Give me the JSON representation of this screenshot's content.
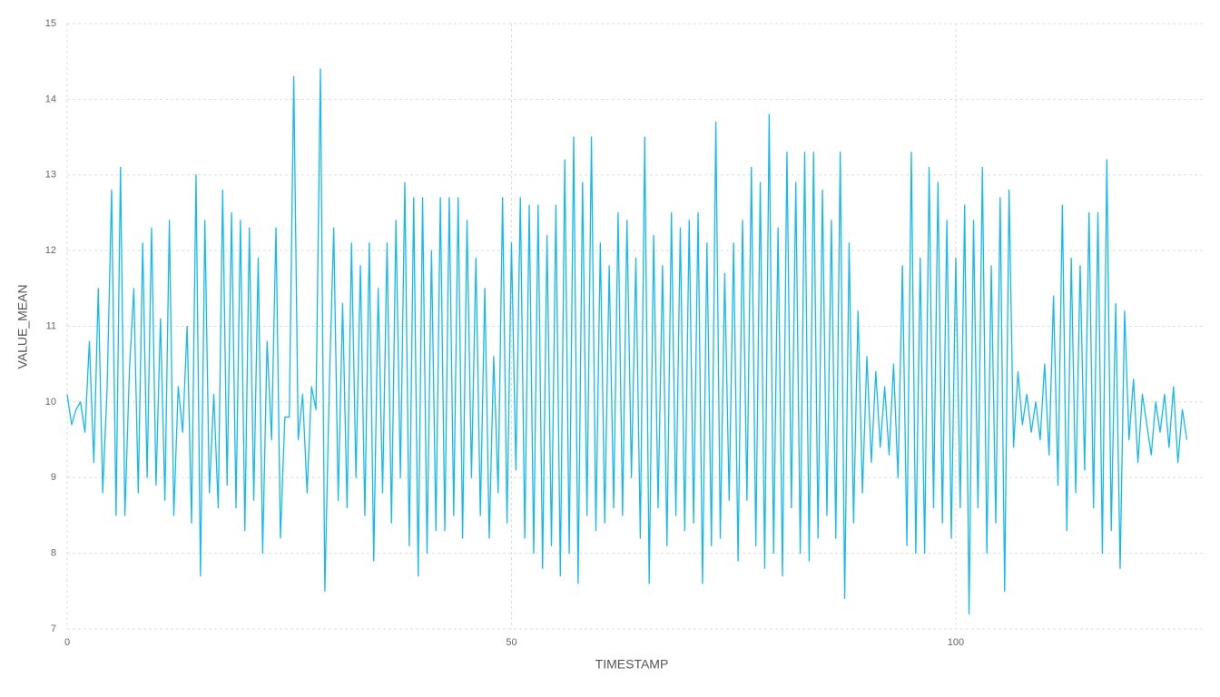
{
  "chart_data": {
    "type": "line",
    "x_label": "TIMESTAMP",
    "y_label": "VALUE_MEAN",
    "color": "#14b9f0",
    "grid": true,
    "xlim": [
      0,
      128
    ],
    "xticks": [
      0,
      50,
      100
    ],
    "ylim": [
      7,
      15
    ],
    "yticks": [
      7,
      8,
      9,
      10,
      11,
      12,
      13,
      14,
      15
    ],
    "x": [
      0,
      0.5,
      1,
      1.5,
      2,
      2.5,
      3,
      3.5,
      4,
      4.5,
      5,
      5.5,
      6,
      6.5,
      7,
      7.5,
      8,
      8.5,
      9,
      9.5,
      10,
      10.5,
      11,
      11.5,
      12,
      12.5,
      13,
      13.5,
      14,
      14.5,
      15,
      15.5,
      16,
      16.5,
      17,
      17.5,
      18,
      18.5,
      19,
      19.5,
      20,
      20.5,
      21,
      21.5,
      22,
      22.5,
      23,
      23.5,
      24,
      24.5,
      25,
      25.5,
      26,
      26.5,
      27,
      27.5,
      28,
      28.5,
      29,
      29.5,
      30,
      30.5,
      31,
      31.5,
      32,
      32.5,
      33,
      33.5,
      34,
      34.5,
      35,
      35.5,
      36,
      36.5,
      37,
      37.5,
      38,
      38.5,
      39,
      39.5,
      40,
      40.5,
      41,
      41.5,
      42,
      42.5,
      43,
      43.5,
      44,
      44.5,
      45,
      45.5,
      46,
      46.5,
      47,
      47.5,
      48,
      48.5,
      49,
      49.5,
      50,
      50.5,
      51,
      51.5,
      52,
      52.5,
      53,
      53.5,
      54,
      54.5,
      55,
      55.5,
      56,
      56.5,
      57,
      57.5,
      58,
      58.5,
      59,
      59.5,
      60,
      60.5,
      61,
      61.5,
      62,
      62.5,
      63,
      63.5,
      64,
      64.5,
      65,
      65.5,
      66,
      66.5,
      67,
      67.5,
      68,
      68.5,
      69,
      69.5,
      70,
      70.5,
      71,
      71.5,
      72,
      72.5,
      73,
      73.5,
      74,
      74.5,
      75,
      75.5,
      76,
      76.5,
      77,
      77.5,
      78,
      78.5,
      79,
      79.5,
      80,
      80.5,
      81,
      81.5,
      82,
      82.5,
      83,
      83.5,
      84,
      84.5,
      85,
      85.5,
      86,
      86.5,
      87,
      87.5,
      88,
      88.5,
      89,
      89.5,
      90,
      90.5,
      91,
      91.5,
      92,
      92.5,
      93,
      93.5,
      94,
      94.5,
      95,
      95.5,
      96,
      96.5,
      97,
      97.5,
      98,
      98.5,
      99,
      99.5,
      100,
      100.5,
      101,
      101.5,
      102,
      102.5,
      103,
      103.5,
      104,
      104.5,
      105,
      105.5,
      106,
      106.5,
      107,
      107.5,
      108,
      108.5,
      109,
      109.5,
      110,
      110.5,
      111,
      111.5,
      112,
      112.5,
      113,
      113.5,
      114,
      114.5,
      115,
      115.5,
      116,
      116.5,
      117,
      117.5,
      118,
      118.5,
      119,
      119.5,
      120,
      120.5,
      121,
      121.5,
      122,
      122.5,
      123,
      123.5,
      124,
      124.5,
      125,
      125.5,
      126
    ],
    "values": [
      10.1,
      9.7,
      9.9,
      10.0,
      9.6,
      10.8,
      9.2,
      11.5,
      8.8,
      10.2,
      12.8,
      8.5,
      13.1,
      8.5,
      10.4,
      11.5,
      8.8,
      12.1,
      9.0,
      12.3,
      8.9,
      11.1,
      8.7,
      12.4,
      8.5,
      10.2,
      9.6,
      11.0,
      8.4,
      13.0,
      7.7,
      12.4,
      8.8,
      10.1,
      8.6,
      12.8,
      8.9,
      12.5,
      8.6,
      12.4,
      8.3,
      12.3,
      8.7,
      11.9,
      8.0,
      10.8,
      9.5,
      12.3,
      8.2,
      9.8,
      9.8,
      14.3,
      9.5,
      10.1,
      8.8,
      10.2,
      9.9,
      14.4,
      7.5,
      10.2,
      12.3,
      8.7,
      11.3,
      8.6,
      12.1,
      9.0,
      11.8,
      8.5,
      12.1,
      7.9,
      11.5,
      8.8,
      12.1,
      8.4,
      12.4,
      9.0,
      12.9,
      8.1,
      12.7,
      7.7,
      12.7,
      8.0,
      12.0,
      8.3,
      12.7,
      8.3,
      12.7,
      8.5,
      12.7,
      8.2,
      12.4,
      9.0,
      11.9,
      8.5,
      11.5,
      8.2,
      10.6,
      8.8,
      12.7,
      8.4,
      12.1,
      9.1,
      12.7,
      8.2,
      12.6,
      8.0,
      12.6,
      7.8,
      12.2,
      8.1,
      12.6,
      7.7,
      13.2,
      8.0,
      13.5,
      7.6,
      12.9,
      8.5,
      13.5,
      8.3,
      12.1,
      8.4,
      11.8,
      8.6,
      12.5,
      8.5,
      12.4,
      9.0,
      11.9,
      8.2,
      13.5,
      7.6,
      12.2,
      8.6,
      11.8,
      8.1,
      12.5,
      8.5,
      12.3,
      8.3,
      12.4,
      8.4,
      12.5,
      7.6,
      12.1,
      8.1,
      13.7,
      8.2,
      11.7,
      8.7,
      12.1,
      7.9,
      12.4,
      8.7,
      13.1,
      8.1,
      12.9,
      7.8,
      13.8,
      8.0,
      12.3,
      7.7,
      13.3,
      8.6,
      12.9,
      8.0,
      13.3,
      7.9,
      13.3,
      8.2,
      12.8,
      8.5,
      12.4,
      8.2,
      13.3,
      7.4,
      12.1,
      8.4,
      11.2,
      8.8,
      10.6,
      9.2,
      10.4,
      9.4,
      10.2,
      9.3,
      10.5,
      9.0,
      11.8,
      8.1,
      13.3,
      8.0,
      11.9,
      8.0,
      13.1,
      8.6,
      12.9,
      8.4,
      12.4,
      8.2,
      11.9,
      8.6,
      12.6,
      7.2,
      12.4,
      8.6,
      13.1,
      8.0,
      11.8,
      8.4,
      12.7,
      7.5,
      12.8,
      9.4,
      10.4,
      9.7,
      10.1,
      9.6,
      10.0,
      9.5,
      10.5,
      9.3,
      11.4,
      8.9,
      12.6,
      8.3,
      11.9,
      8.8,
      11.8,
      9.1,
      12.5,
      8.6,
      12.5,
      8.0,
      13.2,
      8.3,
      11.3,
      7.8,
      11.2,
      9.5,
      10.3,
      9.2,
      10.1,
      9.7,
      9.3,
      10.0,
      9.6,
      10.1,
      9.4,
      10.2,
      9.2,
      9.9,
      9.5
    ]
  }
}
